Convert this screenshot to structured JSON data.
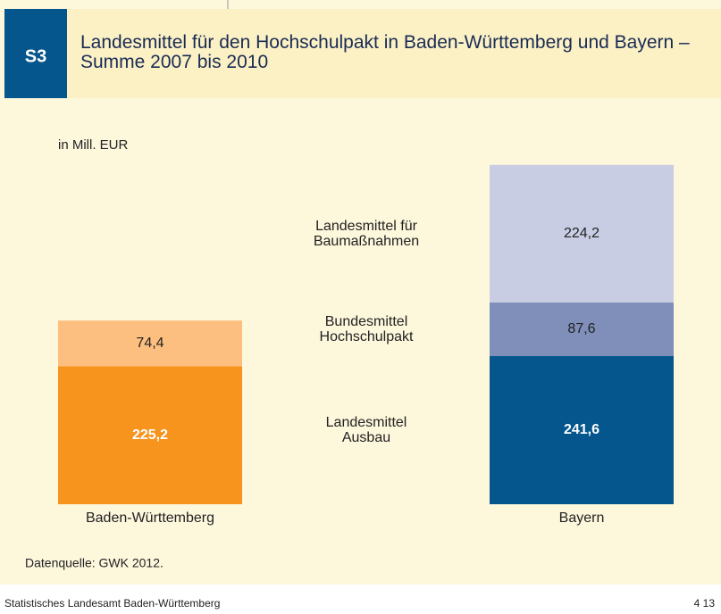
{
  "header": {
    "badge": "S3",
    "title": "Landesmittel für den Hochschulpakt in Baden-Württemberg und Bayern – Summe 2007 bis 2010"
  },
  "chart_data": {
    "type": "stacked_bar",
    "unit_label": "in Mill. EUR",
    "categories": [
      "Baden-Württemberg",
      "Bayern"
    ],
    "series": [
      {
        "name": "Landesmittel Ausbau",
        "colors": [
          "#f7941d",
          "#04568c"
        ],
        "label_color": "#ffffff",
        "values": [
          225.2,
          241.6
        ],
        "value_labels": [
          "225,2",
          "241,6"
        ]
      },
      {
        "name": "Bundesmittel Hochschulpakt",
        "colors": [
          "#fdbf80",
          "#7f8fba"
        ],
        "label_color": "#222222",
        "values": [
          74.4,
          87.6
        ],
        "value_labels": [
          "74,4",
          "87,6"
        ]
      },
      {
        "name": "Landesmittel für Baumaßnahmen",
        "colors": [
          "#fdbf80",
          "#c9cde3"
        ],
        "label_color": "#222222",
        "values": [
          null,
          224.2
        ],
        "value_labels": [
          null,
          "224,2"
        ]
      }
    ],
    "ylim": [
      0,
      540
    ],
    "source": "Datenquelle: GWK 2012."
  },
  "footer": {
    "left": "Statistisches Landesamt Baden-Württemberg",
    "right": "4 13"
  }
}
